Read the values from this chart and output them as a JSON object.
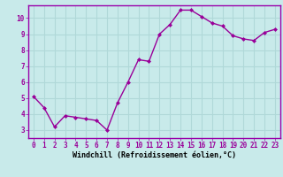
{
  "x": [
    0,
    1,
    2,
    3,
    4,
    5,
    6,
    7,
    8,
    9,
    10,
    11,
    12,
    13,
    14,
    15,
    16,
    17,
    18,
    19,
    20,
    21,
    22,
    23
  ],
  "y": [
    5.1,
    4.4,
    3.2,
    3.9,
    3.8,
    3.7,
    3.6,
    3.0,
    4.7,
    6.0,
    7.4,
    7.3,
    9.0,
    9.6,
    10.5,
    10.5,
    10.1,
    9.7,
    9.5,
    8.9,
    8.7,
    8.6,
    9.1,
    9.3
  ],
  "line_color": "#990099",
  "marker": "D",
  "marker_size": 2.0,
  "bg_color": "#c8eaea",
  "grid_color": "#b0d8d8",
  "xlabel": "Windchill (Refroidissement éolien,°C)",
  "ylabel": "",
  "xlim": [
    -0.5,
    23.5
  ],
  "ylim": [
    2.5,
    10.8
  ],
  "yticks": [
    3,
    4,
    5,
    6,
    7,
    8,
    9,
    10
  ],
  "xticks": [
    0,
    1,
    2,
    3,
    4,
    5,
    6,
    7,
    8,
    9,
    10,
    11,
    12,
    13,
    14,
    15,
    16,
    17,
    18,
    19,
    20,
    21,
    22,
    23
  ],
  "tick_label_size": 5.5,
  "xlabel_size": 6.0,
  "line_width": 1.0
}
